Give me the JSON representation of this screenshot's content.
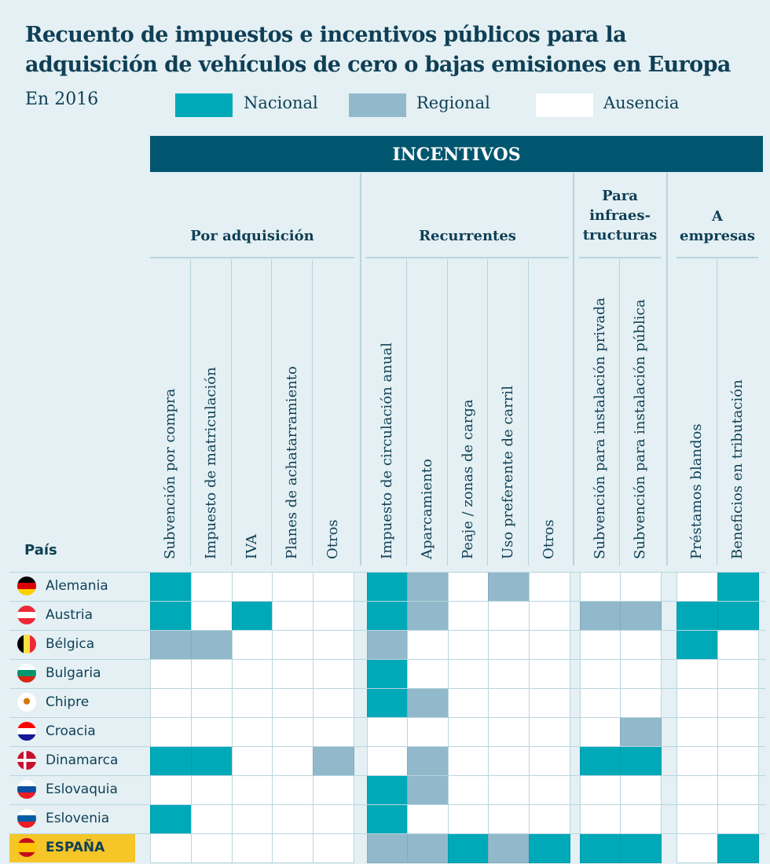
{
  "title": {
    "line1": "Recuento de impuestos e incentivos públicos para la",
    "line2": "adquisición de vehículos de cero o bajas emisiones en Europa"
  },
  "subtitle": "En 2016",
  "legend": [
    {
      "key": "N",
      "label": "Nacional",
      "color": "#00a9b8"
    },
    {
      "key": "R",
      "label": "Regional",
      "color": "#91b9cb"
    },
    {
      "key": "A",
      "label": "Ausencia",
      "color": "#ffffff"
    }
  ],
  "header": "INCENTIVOS",
  "groups": [
    {
      "label": "Por adquisición"
    },
    {
      "label": "Recurrentes"
    },
    {
      "label": "Para infraes- tructuras",
      "lines": [
        "Para",
        "infraes-",
        "tructuras"
      ]
    },
    {
      "label": "A empresas",
      "lines": [
        "A",
        "empresas"
      ]
    }
  ],
  "pais_label": "País",
  "chart_data": {
    "type": "table",
    "title": "Recuento de impuestos e incentivos públicos para la adquisición de vehículos de cero o bajas emisiones en Europa",
    "subtitle": "En 2016",
    "columns": [
      "Subvención por compra",
      "Impuesto de matriculación",
      "IVA",
      "Planes de achatarramiento",
      "Otros",
      "Impuesto de circulación anual",
      "Aparcamiento",
      "Peaje / zonas de carga",
      "Uso preferente de carril",
      "Otros",
      "Subvención para instalación privada",
      "Subvención para instalación pública",
      "Préstamos blandos",
      "Beneficios en tributación"
    ],
    "column_groups": [
      {
        "group": "Por adquisición",
        "count": 5
      },
      {
        "group": "Recurrentes",
        "count": 5
      },
      {
        "group": "Para infraestructuras",
        "count": 2
      },
      {
        "group": "A empresas",
        "count": 2
      }
    ],
    "legend": {
      "N": "Nacional",
      "R": "Regional",
      "A": "Ausencia"
    },
    "rows": [
      {
        "country": "Alemania",
        "flag": "de",
        "values": [
          "N",
          "A",
          "A",
          "A",
          "A",
          "N",
          "R",
          "A",
          "R",
          "A",
          "A",
          "A",
          "A",
          "N"
        ]
      },
      {
        "country": "Austria",
        "flag": "at",
        "values": [
          "N",
          "A",
          "N",
          "A",
          "A",
          "N",
          "R",
          "A",
          "A",
          "A",
          "R",
          "R",
          "N",
          "N"
        ]
      },
      {
        "country": "Bélgica",
        "flag": "be",
        "values": [
          "R",
          "R",
          "A",
          "A",
          "A",
          "R",
          "A",
          "A",
          "A",
          "A",
          "A",
          "A",
          "N",
          "A"
        ]
      },
      {
        "country": "Bulgaria",
        "flag": "bg",
        "values": [
          "A",
          "A",
          "A",
          "A",
          "A",
          "N",
          "A",
          "A",
          "A",
          "A",
          "A",
          "A",
          "A",
          "A"
        ]
      },
      {
        "country": "Chipre",
        "flag": "cy",
        "values": [
          "A",
          "A",
          "A",
          "A",
          "A",
          "N",
          "R",
          "A",
          "A",
          "A",
          "A",
          "A",
          "A",
          "A"
        ]
      },
      {
        "country": "Croacia",
        "flag": "hr",
        "values": [
          "A",
          "A",
          "A",
          "A",
          "A",
          "A",
          "A",
          "A",
          "A",
          "A",
          "A",
          "R",
          "A",
          "A"
        ]
      },
      {
        "country": "Dinamarca",
        "flag": "dk",
        "values": [
          "N",
          "N",
          "A",
          "A",
          "R",
          "A",
          "R",
          "A",
          "A",
          "A",
          "N",
          "N",
          "A",
          "A"
        ]
      },
      {
        "country": "Eslovaquia",
        "flag": "sk",
        "values": [
          "A",
          "A",
          "A",
          "A",
          "A",
          "N",
          "R",
          "A",
          "A",
          "A",
          "A",
          "A",
          "A",
          "A"
        ]
      },
      {
        "country": "Eslovenia",
        "flag": "si",
        "values": [
          "N",
          "A",
          "A",
          "A",
          "A",
          "N",
          "A",
          "A",
          "A",
          "A",
          "A",
          "A",
          "A",
          "A"
        ]
      },
      {
        "country": "ESPAÑA",
        "flag": "es",
        "highlight": true,
        "values": [
          "A",
          "A",
          "A",
          "A",
          "A",
          "R",
          "R",
          "N",
          "R",
          "N",
          "N",
          "N",
          "A",
          "N"
        ]
      }
    ]
  },
  "colors": {
    "N": "#00a9b8",
    "R": "#91b9cb",
    "A": "#ffffff",
    "highlight": "#f6c527",
    "band": "#00566e"
  }
}
